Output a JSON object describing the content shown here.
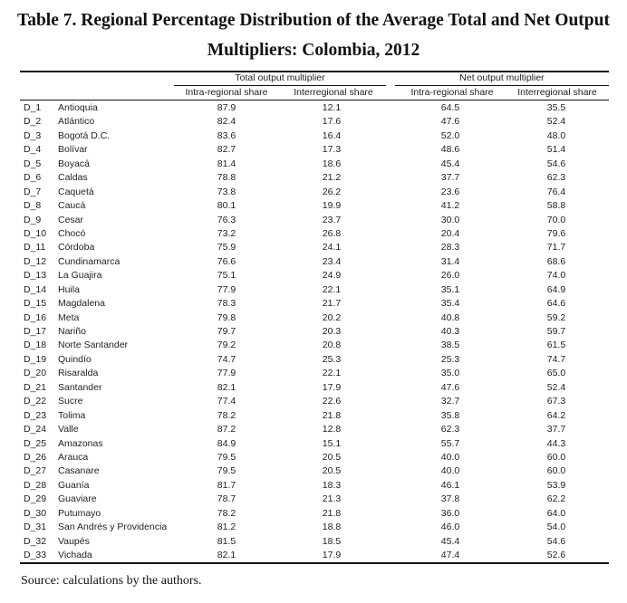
{
  "title": {
    "line1": "Table 7. Regional Percentage Distribution of the Average Total and Net Output",
    "line2": "Multipliers: Colombia, 2012"
  },
  "header": {
    "group_total": "Total output multiplier",
    "group_net": "Net output multiplier",
    "columns": [
      "Intra-regional share",
      "Interregional share",
      "Intra-regional share",
      "Interregional share"
    ]
  },
  "rows": [
    {
      "code": "D_1",
      "name": "Antioquia",
      "t_intra": "87.9",
      "t_inter": "12.1",
      "n_intra": "64.5",
      "n_inter": "35.5"
    },
    {
      "code": "D_2",
      "name": "Atlántico",
      "t_intra": "82.4",
      "t_inter": "17.6",
      "n_intra": "47.6",
      "n_inter": "52.4"
    },
    {
      "code": "D_3",
      "name": "Bogotá D.C.",
      "t_intra": "83.6",
      "t_inter": "16.4",
      "n_intra": "52.0",
      "n_inter": "48.0"
    },
    {
      "code": "D_4",
      "name": "Bolívar",
      "t_intra": "82.7",
      "t_inter": "17.3",
      "n_intra": "48.6",
      "n_inter": "51.4"
    },
    {
      "code": "D_5",
      "name": "Boyacá",
      "t_intra": "81.4",
      "t_inter": "18.6",
      "n_intra": "45.4",
      "n_inter": "54.6"
    },
    {
      "code": "D_6",
      "name": "Caldas",
      "t_intra": "78.8",
      "t_inter": "21.2",
      "n_intra": "37.7",
      "n_inter": "62.3"
    },
    {
      "code": "D_7",
      "name": "Caquetá",
      "t_intra": "73.8",
      "t_inter": "26.2",
      "n_intra": "23.6",
      "n_inter": "76.4"
    },
    {
      "code": "D_8",
      "name": "Caucá",
      "t_intra": "80.1",
      "t_inter": "19.9",
      "n_intra": "41.2",
      "n_inter": "58.8"
    },
    {
      "code": "D_9",
      "name": "Cesar",
      "t_intra": "76.3",
      "t_inter": "23.7",
      "n_intra": "30.0",
      "n_inter": "70.0"
    },
    {
      "code": "D_10",
      "name": "Chocó",
      "t_intra": "73.2",
      "t_inter": "26.8",
      "n_intra": "20.4",
      "n_inter": "79.6"
    },
    {
      "code": "D_11",
      "name": "Córdoba",
      "t_intra": "75.9",
      "t_inter": "24.1",
      "n_intra": "28.3",
      "n_inter": "71.7"
    },
    {
      "code": "D_12",
      "name": "Cundinamarca",
      "t_intra": "76.6",
      "t_inter": "23.4",
      "n_intra": "31.4",
      "n_inter": "68.6"
    },
    {
      "code": "D_13",
      "name": "La Guajira",
      "t_intra": "75.1",
      "t_inter": "24.9",
      "n_intra": "26.0",
      "n_inter": "74.0"
    },
    {
      "code": "D_14",
      "name": "Huila",
      "t_intra": "77.9",
      "t_inter": "22.1",
      "n_intra": "35.1",
      "n_inter": "64.9"
    },
    {
      "code": "D_15",
      "name": "Magdalena",
      "t_intra": "78.3",
      "t_inter": "21.7",
      "n_intra": "35.4",
      "n_inter": "64.6"
    },
    {
      "code": "D_16",
      "name": "Meta",
      "t_intra": "79.8",
      "t_inter": "20.2",
      "n_intra": "40.8",
      "n_inter": "59.2"
    },
    {
      "code": "D_17",
      "name": "Nariño",
      "t_intra": "79.7",
      "t_inter": "20.3",
      "n_intra": "40.3",
      "n_inter": "59.7"
    },
    {
      "code": "D_18",
      "name": "Norte Santander",
      "t_intra": "79.2",
      "t_inter": "20.8",
      "n_intra": "38.5",
      "n_inter": "61.5"
    },
    {
      "code": "D_19",
      "name": "Quindío",
      "t_intra": "74.7",
      "t_inter": "25.3",
      "n_intra": "25.3",
      "n_inter": "74.7"
    },
    {
      "code": "D_20",
      "name": "Risaralda",
      "t_intra": "77.9",
      "t_inter": "22.1",
      "n_intra": "35.0",
      "n_inter": "65.0"
    },
    {
      "code": "D_21",
      "name": "Santander",
      "t_intra": "82.1",
      "t_inter": "17.9",
      "n_intra": "47.6",
      "n_inter": "52.4"
    },
    {
      "code": "D_22",
      "name": "Sucre",
      "t_intra": "77.4",
      "t_inter": "22.6",
      "n_intra": "32.7",
      "n_inter": "67.3"
    },
    {
      "code": "D_23",
      "name": "Tolima",
      "t_intra": "78.2",
      "t_inter": "21.8",
      "n_intra": "35.8",
      "n_inter": "64.2"
    },
    {
      "code": "D_24",
      "name": "Valle",
      "t_intra": "87.2",
      "t_inter": "12.8",
      "n_intra": "62.3",
      "n_inter": "37.7"
    },
    {
      "code": "D_25",
      "name": "Amazonas",
      "t_intra": "84.9",
      "t_inter": "15.1",
      "n_intra": "55.7",
      "n_inter": "44.3"
    },
    {
      "code": "D_26",
      "name": "Arauca",
      "t_intra": "79.5",
      "t_inter": "20.5",
      "n_intra": "40.0",
      "n_inter": "60.0"
    },
    {
      "code": "D_27",
      "name": "Casanare",
      "t_intra": "79.5",
      "t_inter": "20.5",
      "n_intra": "40.0",
      "n_inter": "60.0"
    },
    {
      "code": "D_28",
      "name": "Guanía",
      "t_intra": "81.7",
      "t_inter": "18.3",
      "n_intra": "46.1",
      "n_inter": "53.9"
    },
    {
      "code": "D_29",
      "name": "Guaviare",
      "t_intra": "78.7",
      "t_inter": "21.3",
      "n_intra": "37.8",
      "n_inter": "62.2"
    },
    {
      "code": "D_30",
      "name": "Putumayo",
      "t_intra": "78.2",
      "t_inter": "21.8",
      "n_intra": "36.0",
      "n_inter": "64.0"
    },
    {
      "code": "D_31",
      "name": "San Andrés y Providencia",
      "t_intra": "81.2",
      "t_inter": "18.8",
      "n_intra": "46.0",
      "n_inter": "54.0"
    },
    {
      "code": "D_32",
      "name": "Vaupés",
      "t_intra": "81.5",
      "t_inter": "18.5",
      "n_intra": "45.4",
      "n_inter": "54.6"
    },
    {
      "code": "D_33",
      "name": "Vichada",
      "t_intra": "82.1",
      "t_inter": "17.9",
      "n_intra": "47.4",
      "n_inter": "52.6"
    }
  ],
  "source": "Source: calculations by the authors."
}
